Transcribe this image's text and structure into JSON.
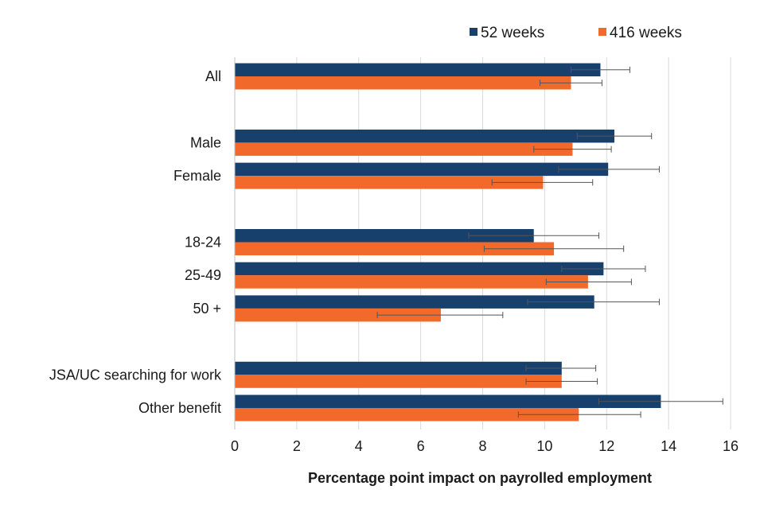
{
  "chart_data": {
    "type": "bar",
    "orientation": "horizontal",
    "categories": [
      "All",
      "Male",
      "Female",
      "18-24",
      "25-49",
      "50 +",
      "JSA/UC searching for work",
      "Other benefit"
    ],
    "groups": [
      [
        "All"
      ],
      [
        "Male",
        "Female"
      ],
      [
        "18-24",
        "25-49",
        "50 +"
      ],
      [
        "JSA/UC searching for work",
        "Other benefit"
      ]
    ],
    "series": [
      {
        "name": "52 weeks",
        "color": "#17406d",
        "values": [
          11.8,
          12.25,
          12.05,
          9.65,
          11.9,
          11.6,
          10.55,
          13.75
        ],
        "error_low": [
          10.85,
          11.05,
          10.45,
          7.55,
          10.55,
          9.45,
          9.4,
          11.75
        ],
        "error_high": [
          12.75,
          13.45,
          13.7,
          11.75,
          13.25,
          13.7,
          11.65,
          15.75
        ]
      },
      {
        "name": "416 weeks",
        "color": "#f26a2b",
        "values": [
          10.85,
          10.9,
          9.95,
          10.3,
          11.4,
          6.65,
          10.55,
          11.1
        ],
        "error_low": [
          9.85,
          9.65,
          8.3,
          8.05,
          10.05,
          4.6,
          9.4,
          9.15
        ],
        "error_high": [
          11.85,
          12.15,
          11.55,
          12.55,
          12.8,
          8.65,
          11.7,
          13.1
        ]
      }
    ],
    "xlabel": "Percentage point impact on payrolled employment",
    "ylabel": "",
    "xlim": [
      0,
      16
    ],
    "xticks": [
      0,
      2,
      4,
      6,
      8,
      10,
      12,
      14,
      16
    ],
    "grid": "vertical",
    "legend_position": "top-right",
    "error_bars": true
  }
}
